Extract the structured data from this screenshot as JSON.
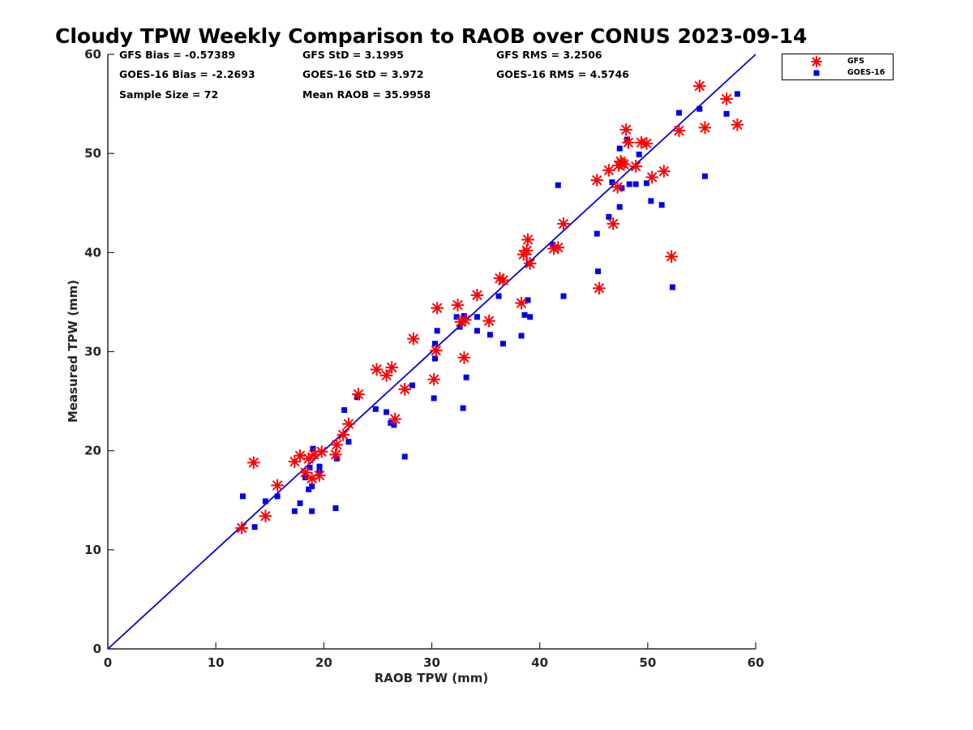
{
  "chart_data": {
    "type": "scatter",
    "title": "Cloudy TPW Weekly Comparison to RAOB over CONUS 2023-09-14",
    "xlabel": "RAOB TPW (mm)",
    "ylabel": "Measured TPW (mm)",
    "xlim": [
      0,
      60
    ],
    "ylim": [
      0,
      60
    ],
    "xticks": [
      "0",
      "10",
      "20",
      "30",
      "40",
      "50",
      "60"
    ],
    "yticks": [
      "0",
      "10",
      "20",
      "30",
      "40",
      "50",
      "60"
    ],
    "grid": false,
    "legend_position": "outside top-right",
    "reference_line": {
      "x": [
        0,
        60
      ],
      "y": [
        0,
        60
      ],
      "color": "#0000dd"
    },
    "stats": {
      "gfs_bias": "GFS Bias = -0.57389",
      "goes_bias": "GOES-16 Bias = -2.2693",
      "sample_size": "Sample Size = 72",
      "gfs_std": "GFS StD = 3.1995",
      "goes_std": "GOES-16 StD = 3.972",
      "mean_raob": "Mean RAOB = 35.9958",
      "gfs_rms": "GFS RMS = 3.2506",
      "goes_rms": "GOES-16 RMS = 4.5746"
    },
    "series": [
      {
        "name": "GFS",
        "marker": "asterisk",
        "color": "#ff0000",
        "points": [
          [
            12.4,
            12.2
          ],
          [
            13.5,
            18.8
          ],
          [
            14.6,
            13.4
          ],
          [
            15.7,
            16.5
          ],
          [
            17.3,
            18.9
          ],
          [
            17.8,
            19.5
          ],
          [
            18.3,
            17.8
          ],
          [
            18.6,
            19.2
          ],
          [
            18.9,
            17.2
          ],
          [
            19.1,
            19.6
          ],
          [
            19.6,
            17.5
          ],
          [
            19.8,
            19.9
          ],
          [
            21.1,
            19.6
          ],
          [
            21.2,
            20.6
          ],
          [
            21.8,
            21.6
          ],
          [
            22.3,
            22.7
          ],
          [
            23.2,
            25.7
          ],
          [
            24.9,
            28.2
          ],
          [
            25.8,
            27.6
          ],
          [
            26.3,
            28.4
          ],
          [
            26.6,
            23.2
          ],
          [
            27.5,
            26.2
          ],
          [
            28.3,
            31.3
          ],
          [
            30.2,
            27.2
          ],
          [
            30.4,
            30.1
          ],
          [
            30.5,
            34.4
          ],
          [
            32.4,
            34.7
          ],
          [
            32.7,
            33.0
          ],
          [
            33.0,
            29.4
          ],
          [
            33.1,
            33.2
          ],
          [
            34.2,
            35.7
          ],
          [
            35.3,
            33.1
          ],
          [
            36.3,
            37.4
          ],
          [
            36.6,
            37.2
          ],
          [
            38.3,
            34.9
          ],
          [
            38.5,
            39.8
          ],
          [
            38.8,
            40.2
          ],
          [
            38.9,
            41.3
          ],
          [
            39.1,
            38.9
          ],
          [
            41.3,
            40.4
          ],
          [
            41.7,
            40.5
          ],
          [
            42.2,
            42.9
          ],
          [
            45.3,
            47.3
          ],
          [
            45.5,
            36.4
          ],
          [
            46.4,
            48.3
          ],
          [
            46.8,
            42.9
          ],
          [
            47.2,
            46.6
          ],
          [
            47.3,
            48.8
          ],
          [
            47.5,
            49.2
          ],
          [
            47.6,
            49.0
          ],
          [
            47.8,
            48.9
          ],
          [
            48.0,
            52.4
          ],
          [
            48.2,
            51.1
          ],
          [
            48.9,
            48.7
          ],
          [
            49.4,
            51.1
          ],
          [
            49.9,
            51.0
          ],
          [
            50.4,
            47.6
          ],
          [
            51.5,
            48.2
          ],
          [
            52.2,
            39.6
          ],
          [
            52.9,
            52.3
          ],
          [
            54.8,
            56.8
          ],
          [
            55.3,
            52.6
          ],
          [
            57.3,
            55.5
          ],
          [
            58.3,
            52.9
          ]
        ]
      },
      {
        "name": "GOES-16",
        "marker": "square",
        "color": "#0000ee",
        "points": [
          [
            12.5,
            15.4
          ],
          [
            13.6,
            12.3
          ],
          [
            14.6,
            14.9
          ],
          [
            15.7,
            15.4
          ],
          [
            17.3,
            13.9
          ],
          [
            17.8,
            14.7
          ],
          [
            18.3,
            17.3
          ],
          [
            18.6,
            16.1
          ],
          [
            18.7,
            18.3
          ],
          [
            18.9,
            13.9
          ],
          [
            18.9,
            16.4
          ],
          [
            19.0,
            20.2
          ],
          [
            19.6,
            18.0
          ],
          [
            19.6,
            18.4
          ],
          [
            21.1,
            14.2
          ],
          [
            21.2,
            19.2
          ],
          [
            21.9,
            24.1
          ],
          [
            22.3,
            20.9
          ],
          [
            23.1,
            25.4
          ],
          [
            24.8,
            24.2
          ],
          [
            25.8,
            23.9
          ],
          [
            26.2,
            22.8
          ],
          [
            26.5,
            22.6
          ],
          [
            27.5,
            19.4
          ],
          [
            28.2,
            26.6
          ],
          [
            30.2,
            25.3
          ],
          [
            30.3,
            29.3
          ],
          [
            30.3,
            30.8
          ],
          [
            30.5,
            32.1
          ],
          [
            32.3,
            33.5
          ],
          [
            32.6,
            32.5
          ],
          [
            32.9,
            24.3
          ],
          [
            33.0,
            33.6
          ],
          [
            33.2,
            27.4
          ],
          [
            34.2,
            32.1
          ],
          [
            34.2,
            33.5
          ],
          [
            35.4,
            31.7
          ],
          [
            36.2,
            35.6
          ],
          [
            36.6,
            30.8
          ],
          [
            38.3,
            31.6
          ],
          [
            38.6,
            33.7
          ],
          [
            38.9,
            35.2
          ],
          [
            39.0,
            38.9
          ],
          [
            39.1,
            33.5
          ],
          [
            41.2,
            40.8
          ],
          [
            41.7,
            46.8
          ],
          [
            42.2,
            35.6
          ],
          [
            45.3,
            41.9
          ],
          [
            45.4,
            38.1
          ],
          [
            46.4,
            43.6
          ],
          [
            46.7,
            47.1
          ],
          [
            47.4,
            44.6
          ],
          [
            47.4,
            50.5
          ],
          [
            47.6,
            46.5
          ],
          [
            48.1,
            51.4
          ],
          [
            48.3,
            46.9
          ],
          [
            48.9,
            46.9
          ],
          [
            49.2,
            49.9
          ],
          [
            49.9,
            47.0
          ],
          [
            50.3,
            45.2
          ],
          [
            51.3,
            44.8
          ],
          [
            52.3,
            36.5
          ],
          [
            52.9,
            54.1
          ],
          [
            54.8,
            54.5
          ],
          [
            55.3,
            47.7
          ],
          [
            57.3,
            54.0
          ],
          [
            58.3,
            56.0
          ]
        ]
      }
    ]
  }
}
